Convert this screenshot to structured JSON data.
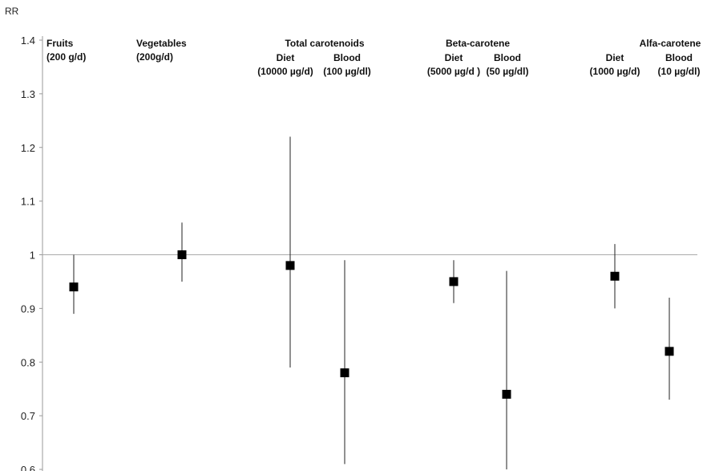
{
  "chart_data": {
    "type": "scatter",
    "ylabel": "RR",
    "ylim": [
      0.6,
      1.4
    ],
    "yticks": [
      "0.6",
      "0.7",
      "0.8",
      "0.9",
      "1",
      "1.1",
      "1.2",
      "1.3",
      "1.4"
    ],
    "reference_line": 1,
    "grid": false,
    "group_labels": [
      {
        "key": "fruits",
        "lines": [
          "Fruits",
          "(200 g/d)"
        ]
      },
      {
        "key": "vegetables",
        "lines": [
          "Vegetables",
          "(200g/d)"
        ]
      },
      {
        "key": "total-carotenoids",
        "lines": [
          "Total carotenoids"
        ]
      },
      {
        "key": "total-carotenoids-diet",
        "lines": [
          "Diet",
          "(10000 µg/d)"
        ]
      },
      {
        "key": "total-carotenoids-blood",
        "lines": [
          "Blood",
          "(100 µg/dl)"
        ]
      },
      {
        "key": "beta-carotene",
        "lines": [
          "Beta-carotene"
        ]
      },
      {
        "key": "beta-carotene-diet",
        "lines": [
          "Diet",
          "(5000 µg/d )"
        ]
      },
      {
        "key": "beta-carotene-blood",
        "lines": [
          "Blood",
          "(50 µg/dl)"
        ]
      },
      {
        "key": "alfa-carotene",
        "lines": [
          "Alfa-carotene"
        ]
      },
      {
        "key": "alfa-carotene-diet",
        "lines": [
          "Diet",
          "(1000 µg/d)"
        ]
      },
      {
        "key": "alfa-carotene-blood",
        "lines": [
          "Blood",
          "(10 µg/dl)"
        ]
      }
    ],
    "points": [
      {
        "key": "fruits",
        "rr": 0.94,
        "lower": 0.89,
        "upper": 1.0
      },
      {
        "key": "vegetables",
        "rr": 1.0,
        "lower": 0.95,
        "upper": 1.06
      },
      {
        "key": "total-carotenoids-diet",
        "rr": 0.98,
        "lower": 0.79,
        "upper": 1.22
      },
      {
        "key": "total-carotenoids-blood",
        "rr": 0.78,
        "lower": 0.61,
        "upper": 0.99
      },
      {
        "key": "beta-carotene-diet",
        "rr": 0.95,
        "lower": 0.91,
        "upper": 0.99
      },
      {
        "key": "beta-carotene-blood",
        "rr": 0.74,
        "lower": 0.6,
        "upper": 0.97
      },
      {
        "key": "alfa-carotene-diet",
        "rr": 0.96,
        "lower": 0.9,
        "upper": 1.02
      },
      {
        "key": "alfa-carotene-blood",
        "rr": 0.82,
        "lower": 0.73,
        "upper": 0.92
      }
    ]
  }
}
